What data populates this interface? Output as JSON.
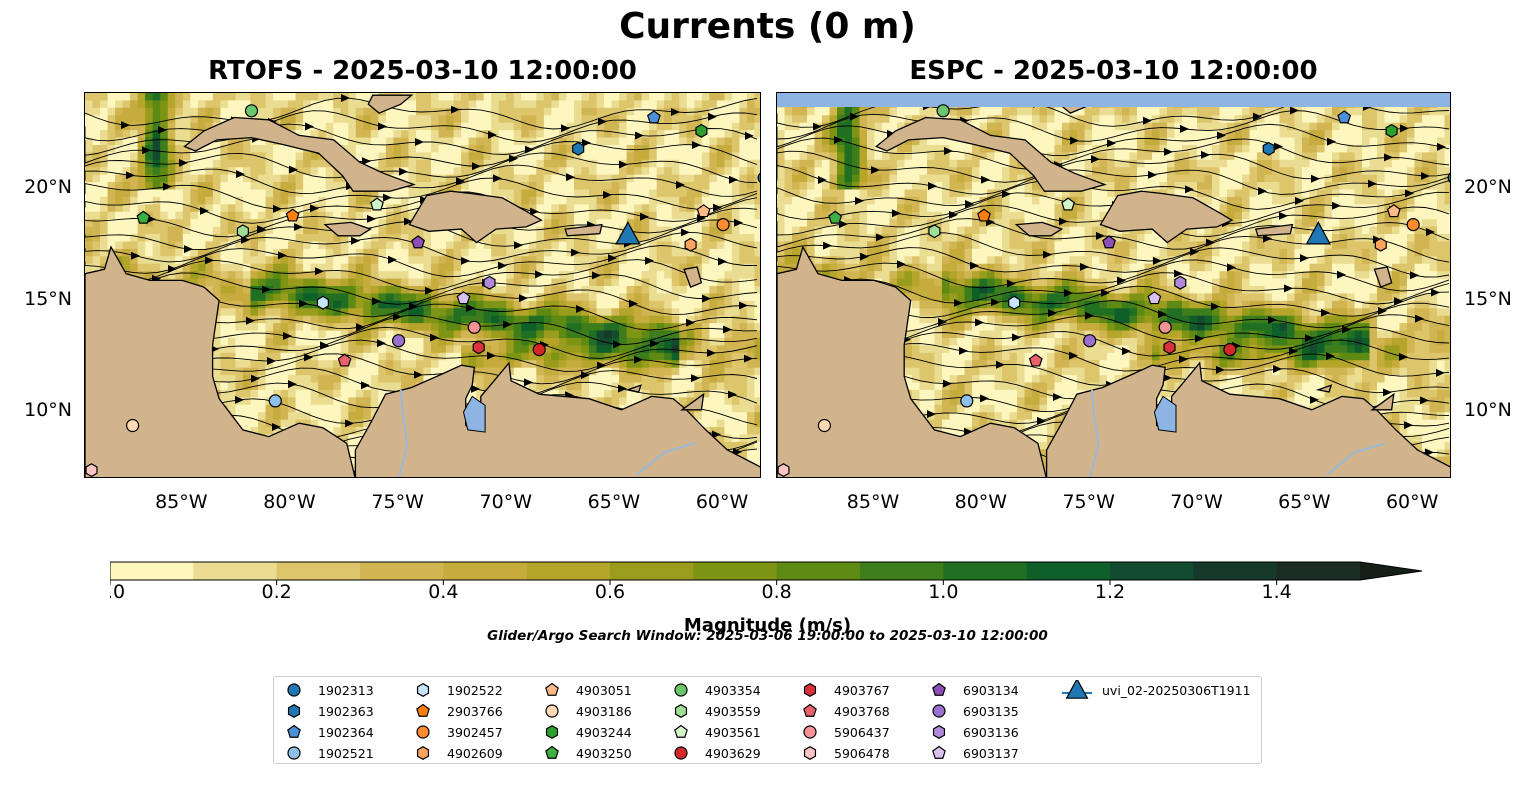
{
  "title": "Currents (0 m)",
  "panels": [
    {
      "title": "RTOFS - 2025-03-10 12:00:00"
    },
    {
      "title": "ESPC - 2025-03-10 12:00:00"
    }
  ],
  "axes": {
    "x_ticks": [
      "85°W",
      "80°W",
      "75°W",
      "70°W",
      "65°W",
      "60°W"
    ],
    "y_ticks": [
      "20°N",
      "15°N",
      "10°N"
    ],
    "lon_range": [
      -89.5,
      -58.2
    ],
    "lat_range": [
      7.0,
      24.3
    ]
  },
  "colorbar": {
    "label": "Magnitude (m/s)",
    "ticks": [
      "0.0",
      "0.2",
      "0.4",
      "0.6",
      "0.8",
      "1.0",
      "1.2",
      "1.4"
    ],
    "range": [
      0.0,
      1.5
    ],
    "extend": "max",
    "colors": [
      "#fdf6bf",
      "#eadd92",
      "#dcc56a",
      "#d2b553",
      "#c6ac3d",
      "#b6a52b",
      "#9a9c1d",
      "#7e9414",
      "#5e8a14",
      "#3e7d1c",
      "#206f23",
      "#0e5f2a",
      "#124b2e",
      "#17392b",
      "#1a2c23",
      "#151f17"
    ]
  },
  "search_window": "Glider/Argo Search Window: 2025-03-06 19:00:00 to 2025-03-10 12:00:00",
  "legend": [
    {
      "label": "1902313",
      "marker": "circle",
      "color": "#1f77b4"
    },
    {
      "label": "1902363",
      "marker": "hexagon",
      "color": "#1f77b4"
    },
    {
      "label": "1902364",
      "marker": "pentagon",
      "color": "#4a90d9"
    },
    {
      "label": "1902521",
      "marker": "circle",
      "color": "#8ec1ea"
    },
    {
      "label": "1902522",
      "marker": "hexagon",
      "color": "#c6e4fa"
    },
    {
      "label": "2903766",
      "marker": "pentagon",
      "color": "#ff7f0e"
    },
    {
      "label": "3902457",
      "marker": "circle",
      "color": "#ff8c2e"
    },
    {
      "label": "4902609",
      "marker": "hexagon",
      "color": "#ffa35e"
    },
    {
      "label": "4903051",
      "marker": "pentagon",
      "color": "#ffbb88"
    },
    {
      "label": "4903186",
      "marker": "circle",
      "color": "#ffd9b3"
    },
    {
      "label": "4903244",
      "marker": "hexagon",
      "color": "#2ca02c"
    },
    {
      "label": "4903250",
      "marker": "pentagon",
      "color": "#3cb043"
    },
    {
      "label": "4903354",
      "marker": "circle",
      "color": "#6cc76c"
    },
    {
      "label": "4903559",
      "marker": "hexagon",
      "color": "#9fde95"
    },
    {
      "label": "4903561",
      "marker": "pentagon",
      "color": "#d2f5c8"
    },
    {
      "label": "4903629",
      "marker": "circle",
      "color": "#d62728"
    },
    {
      "label": "4903767",
      "marker": "hexagon",
      "color": "#d9323a"
    },
    {
      "label": "4903768",
      "marker": "pentagon",
      "color": "#e9616a"
    },
    {
      "label": "5906437",
      "marker": "circle",
      "color": "#f39393"
    },
    {
      "label": "5906478",
      "marker": "hexagon",
      "color": "#fcc4c4"
    },
    {
      "label": "6903134",
      "marker": "pentagon",
      "color": "#8c4fb6"
    },
    {
      "label": "6903135",
      "marker": "circle",
      "color": "#9a6fcf"
    },
    {
      "label": "6903136",
      "marker": "hexagon",
      "color": "#b08ad8"
    },
    {
      "label": "6903137",
      "marker": "pentagon",
      "color": "#d8c2f2"
    },
    {
      "label": "uvi_02-20250306T1911",
      "marker": "triangle",
      "color": "#1f77b4"
    }
  ],
  "map_data": {
    "glider_track": {
      "label": "uvi_02-20250306T1911",
      "lon": -64.4,
      "lat": 17.9
    },
    "floats": [
      {
        "id": "1902313",
        "lon": -58.1,
        "lat": 20.5
      },
      {
        "id": "1902363",
        "lon": -66.7,
        "lat": 21.8
      },
      {
        "id": "1902364",
        "lon": -63.2,
        "lat": 23.2
      },
      {
        "id": "1902521",
        "lon": -80.7,
        "lat": 10.5
      },
      {
        "id": "1902522",
        "lon": -78.5,
        "lat": 14.9
      },
      {
        "id": "2903766",
        "lon": -79.9,
        "lat": 18.8
      },
      {
        "id": "3902457",
        "lon": -60.0,
        "lat": 18.4
      },
      {
        "id": "4902609",
        "lon": -61.5,
        "lat": 17.5
      },
      {
        "id": "4903051",
        "lon": -60.9,
        "lat": 19.0
      },
      {
        "id": "4903186",
        "lon": -87.3,
        "lat": 9.4
      },
      {
        "id": "4903244",
        "lon": -61.0,
        "lat": 22.6
      },
      {
        "id": "4903250",
        "lon": -86.8,
        "lat": 18.7
      },
      {
        "id": "4903354",
        "lon": -81.8,
        "lat": 23.5
      },
      {
        "id": "4903559",
        "lon": -82.2,
        "lat": 18.1
      },
      {
        "id": "4903561",
        "lon": -76.0,
        "lat": 19.3
      },
      {
        "id": "4903629",
        "lon": -68.5,
        "lat": 12.8
      },
      {
        "id": "4903767",
        "lon": -71.3,
        "lat": 12.9
      },
      {
        "id": "4903768",
        "lon": -77.5,
        "lat": 12.3
      },
      {
        "id": "5906437",
        "lon": -71.5,
        "lat": 13.8
      },
      {
        "id": "5906478",
        "lon": -89.2,
        "lat": 7.4
      },
      {
        "id": "6903134",
        "lon": -74.1,
        "lat": 17.6
      },
      {
        "id": "6903135",
        "lon": -75.0,
        "lat": 13.2
      },
      {
        "id": "6903136",
        "lon": -70.8,
        "lat": 15.8
      },
      {
        "id": "6903137",
        "lon": -72.0,
        "lat": 15.1
      }
    ]
  }
}
